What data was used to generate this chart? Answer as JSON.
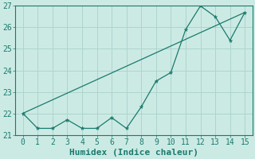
{
  "xlabel": "Humidex (Indice chaleur)",
  "ylabel": "",
  "background_color": "#cceae4",
  "grid_color": "#aed4ce",
  "line_color": "#1a7a6e",
  "xlim": [
    -0.5,
    15.5
  ],
  "ylim": [
    21.0,
    27.0
  ],
  "yticks": [
    21,
    22,
    23,
    24,
    25,
    26,
    27
  ],
  "xticks": [
    0,
    1,
    2,
    3,
    4,
    5,
    6,
    7,
    8,
    9,
    10,
    11,
    12,
    13,
    14,
    15
  ],
  "x": [
    0,
    1,
    2,
    3,
    4,
    5,
    6,
    7,
    8,
    9,
    10,
    11,
    12,
    13,
    14,
    15
  ],
  "y": [
    22.0,
    21.3,
    21.3,
    21.7,
    21.3,
    21.3,
    21.8,
    21.3,
    22.3,
    23.5,
    23.9,
    25.9,
    27.0,
    26.5,
    25.4,
    26.7
  ],
  "trend_x": [
    0,
    15
  ],
  "trend_y": [
    22.0,
    26.7
  ],
  "marker_size": 3,
  "font_size": 7,
  "xlabel_fontsize": 8
}
